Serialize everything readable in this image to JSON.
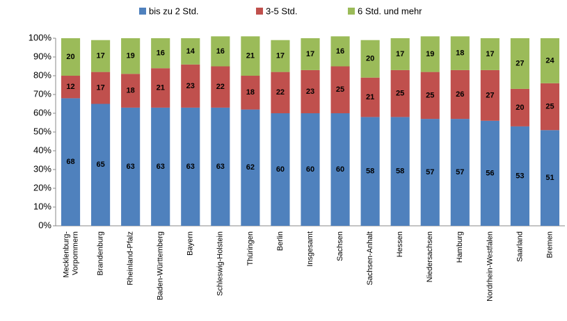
{
  "chart_data": {
    "type": "stacked_bar",
    "categories": [
      "Mecklenburg-Vorpommern",
      "Brandenburg",
      "Rheinland-Pfalz",
      "Baden-Württemberg",
      "Bayern",
      "Schleswig-Holstein",
      "Thüringen",
      "Berlin",
      "Insgesamt",
      "Sachsen",
      "Sachsen-Anhalt",
      "Hessen",
      "Niedersachsen",
      "Hamburg",
      "Nordrhein-Westfalen",
      "Saarland",
      "Bremen"
    ],
    "series": [
      {
        "name": "bis zu 2 Std.",
        "color": "#4f81bd",
        "values": [
          68,
          65,
          63,
          63,
          63,
          63,
          62,
          60,
          60,
          60,
          58,
          58,
          57,
          57,
          56,
          53,
          51
        ]
      },
      {
        "name": "3-5 Std.",
        "color": "#c0504d",
        "values": [
          12,
          17,
          18,
          21,
          23,
          22,
          18,
          22,
          23,
          25,
          21,
          25,
          25,
          26,
          27,
          20,
          25
        ]
      },
      {
        "name": "6 Std. und mehr",
        "color": "#9bbb59",
        "values": [
          20,
          17,
          19,
          16,
          14,
          16,
          21,
          17,
          17,
          16,
          20,
          17,
          19,
          18,
          17,
          27,
          24
        ]
      }
    ],
    "ylim": [
      0,
      100
    ],
    "yticks": [
      {
        "value": 0,
        "label": "0%"
      },
      {
        "value": 10,
        "label": "10%"
      },
      {
        "value": 20,
        "label": "20%"
      },
      {
        "value": 30,
        "label": "30%"
      },
      {
        "value": 40,
        "label": "40%"
      },
      {
        "value": 50,
        "label": "50%"
      },
      {
        "value": 60,
        "label": "60%"
      },
      {
        "value": 70,
        "label": "70%"
      },
      {
        "value": 80,
        "label": "80%"
      },
      {
        "value": 90,
        "label": "90%"
      },
      {
        "value": 100,
        "label": "100%"
      }
    ],
    "legend": "top"
  }
}
